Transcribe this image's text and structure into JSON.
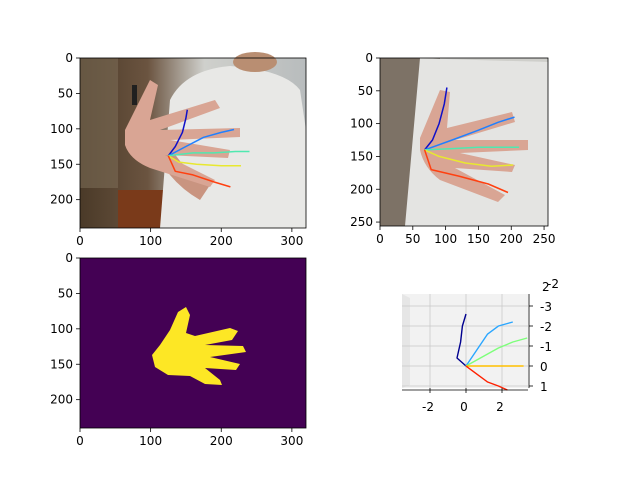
{
  "chart_data": [
    {
      "type": "image",
      "content": "photo of person in white t-shirt holding open hand, with 2D hand skeleton overlay",
      "xticks": [
        0,
        100,
        200,
        300
      ],
      "yticks": [
        0,
        50,
        100,
        150,
        200
      ],
      "xlim": [
        0,
        320
      ],
      "ylim": [
        240,
        0
      ],
      "skeleton": {
        "wrist": [
          125,
          138
        ],
        "fingers": [
          {
            "color": "#1010c8",
            "points": [
              [
                125,
                138
              ],
              [
                135,
                125
              ],
              [
                145,
                105
              ],
              [
                150,
                85
              ],
              [
                152,
                73
              ]
            ]
          },
          {
            "color": "#2080ff",
            "points": [
              [
                125,
                138
              ],
              [
                150,
                125
              ],
              [
                175,
                112
              ],
              [
                200,
                105
              ],
              [
                218,
                101
              ]
            ]
          },
          {
            "color": "#50e8b0",
            "points": [
              [
                125,
                138
              ],
              [
                160,
                134
              ],
              [
                190,
                134
              ],
              [
                220,
                132
              ],
              [
                240,
                132
              ]
            ]
          },
          {
            "color": "#e8e830",
            "points": [
              [
                125,
                138
              ],
              [
                140,
                147
              ],
              [
                165,
                150
              ],
              [
                200,
                152
              ],
              [
                228,
                152
              ]
            ]
          },
          {
            "color": "#ff4010",
            "points": [
              [
                125,
                138
              ],
              [
                135,
                160
              ],
              [
                160,
                165
              ],
              [
                190,
                175
              ],
              [
                213,
                182
              ]
            ]
          }
        ]
      }
    },
    {
      "type": "image",
      "content": "cropped photo of the hand region with 2D hand skeleton overlay",
      "xticks": [
        0,
        50,
        100,
        150,
        200,
        250
      ],
      "yticks": [
        0,
        50,
        100,
        150,
        200,
        250
      ],
      "xlim": [
        0,
        256
      ],
      "ylim": [
        256,
        0
      ],
      "skeleton": {
        "wrist": [
          68,
          140
        ],
        "fingers": [
          {
            "color": "#1010c8",
            "points": [
              [
                68,
                140
              ],
              [
                80,
                125
              ],
              [
                90,
                100
              ],
              [
                98,
                70
              ],
              [
                102,
                45
              ]
            ]
          },
          {
            "color": "#2080ff",
            "points": [
              [
                68,
                140
              ],
              [
                110,
                125
              ],
              [
                150,
                110
              ],
              [
                180,
                98
              ],
              [
                205,
                90
              ]
            ]
          },
          {
            "color": "#50e8b0",
            "points": [
              [
                68,
                140
              ],
              [
                110,
                138
              ],
              [
                150,
                136
              ],
              [
                185,
                136
              ],
              [
                212,
                136
              ]
            ]
          },
          {
            "color": "#e8e830",
            "points": [
              [
                68,
                140
              ],
              [
                90,
                150
              ],
              [
                130,
                160
              ],
              [
                170,
                165
              ],
              [
                203,
                163
              ]
            ]
          },
          {
            "color": "#ff4010",
            "points": [
              [
                68,
                140
              ],
              [
                78,
                170
              ],
              [
                120,
                180
              ],
              [
                165,
                192
              ],
              [
                195,
                205
              ]
            ]
          }
        ]
      }
    },
    {
      "type": "heatmap",
      "content": "binary hand segmentation mask",
      "colors": {
        "background": "#440154",
        "foreground": "#fde725"
      },
      "xticks": [
        0,
        100,
        200,
        300
      ],
      "yticks": [
        0,
        50,
        100,
        150,
        200
      ],
      "xlim": [
        0,
        320
      ],
      "ylim": [
        240,
        0
      ]
    },
    {
      "type": "line3d",
      "content": "3D hand skeleton",
      "x_ticks": [
        -2,
        0,
        2
      ],
      "y_ticks": [
        1,
        0,
        -1,
        -2,
        -3
      ],
      "z_ticks": [
        2
      ],
      "z_extra_label": "-2",
      "fingers": [
        {
          "color": "#00008f",
          "points": [
            [
              0,
              0
            ],
            [
              -0.5,
              -0.4
            ],
            [
              -0.3,
              -1.2
            ],
            [
              -0.2,
              -2.0
            ],
            [
              0.0,
              -2.6
            ]
          ]
        },
        {
          "color": "#2aa6ff",
          "points": [
            [
              0,
              0
            ],
            [
              0.6,
              -0.8
            ],
            [
              1.2,
              -1.6
            ],
            [
              1.8,
              -2.0
            ],
            [
              2.6,
              -2.2
            ]
          ]
        },
        {
          "color": "#7dff7a",
          "points": [
            [
              0,
              0
            ],
            [
              1.0,
              -0.5
            ],
            [
              1.8,
              -0.9
            ],
            [
              2.6,
              -1.2
            ],
            [
              3.4,
              -1.4
            ]
          ]
        },
        {
          "color": "#ffc000",
          "points": [
            [
              0,
              0
            ],
            [
              0.8,
              0.0
            ],
            [
              1.6,
              0.0
            ],
            [
              2.4,
              0.0
            ],
            [
              3.2,
              0.0
            ]
          ]
        },
        {
          "color": "#ff2000",
          "points": [
            [
              0,
              0
            ],
            [
              0.6,
              0.4
            ],
            [
              1.2,
              0.8
            ],
            [
              1.8,
              1.0
            ],
            [
              2.3,
              1.2
            ]
          ]
        }
      ]
    }
  ]
}
